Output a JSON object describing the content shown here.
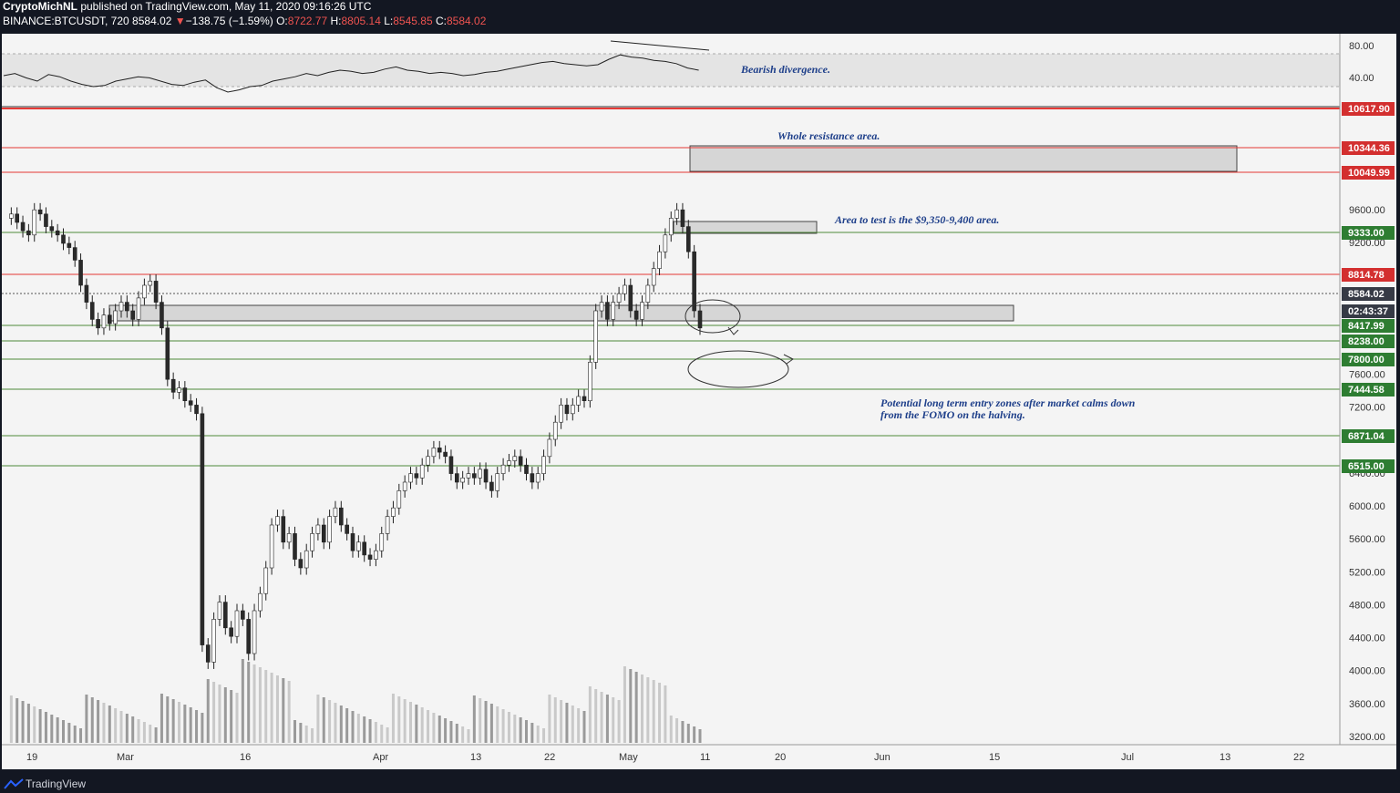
{
  "header": {
    "author": "CryptoMichNL",
    "published": " published on TradingView.com, May 11, 2020 09:16:26 UTC",
    "symbol": "BINANCE:BTCUSDT, 720",
    "last": "8584.02",
    "change_arrow": "▼",
    "change": "−138.75 (−1.59%)",
    "open_label": "O:",
    "open": "8722.77",
    "high_label": "H:",
    "high": "8805.14",
    "low_label": "L:",
    "low": "8545.85",
    "close_label": "C:",
    "close": "8584.02"
  },
  "footer": {
    "brand": "TradingView",
    "logo_icon": "tradingview-logo-icon"
  },
  "colors": {
    "up_candle": "#ffffff",
    "down_candle": "#2a2a2a",
    "red_line": "#e53935",
    "green_line": "#4e8a3a",
    "annotation": "#1e3f8a",
    "zone_fill": "#d6d6d6",
    "price_tag_red": "#d32f2f",
    "price_tag_green": "#2e7d32",
    "price_tag_dark": "#363a45"
  },
  "chart_data": {
    "type": "candlestick",
    "x_tick_labels": [
      "19",
      "Mar",
      "16",
      "Apr",
      "13",
      "22",
      "May",
      "11",
      "20",
      "Jun",
      "15",
      "Jul",
      "13",
      "22"
    ],
    "y_tick_labels": [
      "9600.00",
      "9200.00",
      "7600.00",
      "7200.00",
      "6400.00",
      "6000.00",
      "5600.00",
      "5200.00",
      "4800.00",
      "4400.00",
      "4000.00",
      "3600.00",
      "3200.00"
    ],
    "rsi_tick_labels": [
      "80.00",
      "40.00"
    ],
    "price_levels": [
      {
        "label": "10617.90",
        "value": 10617.9,
        "color": "red"
      },
      {
        "label": "10344.36",
        "value": 10344.36,
        "color": "red"
      },
      {
        "label": "10049.99",
        "value": 10049.99,
        "color": "red"
      },
      {
        "label": "9333.00",
        "value": 9333.0,
        "color": "green"
      },
      {
        "label": "8814.78",
        "value": 8814.78,
        "color": "red"
      },
      {
        "label": "8584.02",
        "value": 8584.02,
        "color": "dark"
      },
      {
        "label": "02:43:37",
        "value": 8417.99,
        "color": "dark"
      },
      {
        "label": "8417.99",
        "value": 8417.99,
        "color": "green"
      },
      {
        "label": "8238.00",
        "value": 8238.0,
        "color": "green"
      },
      {
        "label": "7800.00",
        "value": 7800.0,
        "color": "green"
      },
      {
        "label": "7444.58",
        "value": 7444.58,
        "color": "green"
      },
      {
        "label": "6871.04",
        "value": 6871.04,
        "color": "green"
      },
      {
        "label": "6515.00",
        "value": 6515.0,
        "color": "green"
      }
    ],
    "zones": [
      {
        "name": "resistance",
        "from": 10049.99,
        "to": 10344.36
      },
      {
        "name": "test",
        "from": 9333.0,
        "to": 9480.0
      },
      {
        "name": "support",
        "from": 8417.99,
        "to": 8600.0
      }
    ],
    "annotations": [
      {
        "text": "Bearish divergence."
      },
      {
        "text": "Whole resistance area."
      },
      {
        "text": "Area to test is the $9,350-9,400 area."
      },
      {
        "text": "Potential long term entry zones after market calms down"
      },
      {
        "text": "from the FOMO on the halving."
      }
    ]
  }
}
